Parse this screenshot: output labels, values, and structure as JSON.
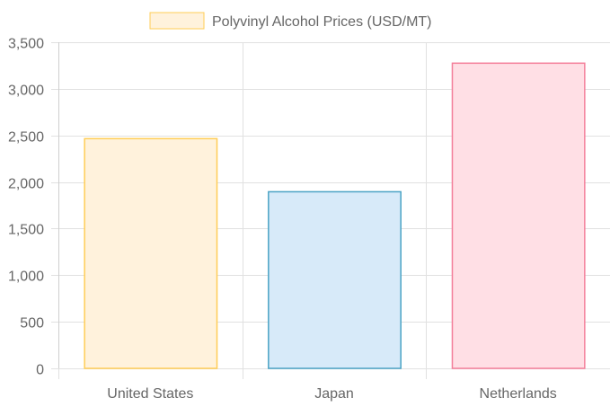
{
  "chart_data": {
    "type": "bar",
    "categories": [
      "United States",
      "Japan",
      "Netherlands"
    ],
    "series": [
      {
        "name": "Polyvinyl Alcohol Prices (USD/MT)",
        "values": [
          2470,
          1900,
          3280
        ]
      }
    ],
    "ylim": [
      0,
      3500
    ],
    "yticks": [
      0,
      500,
      1000,
      1500,
      2000,
      2500,
      3000,
      3500
    ],
    "ytick_labels": [
      "0",
      "500",
      "1,000",
      "1,500",
      "2,000",
      "2,500",
      "3,000",
      "3,500"
    ],
    "legend": "top-center",
    "grid": true,
    "bar_fill_colors": [
      "#fff2dc",
      "#d7eaf9",
      "#ffdfe5"
    ],
    "bar_border_colors": [
      "#ffcd56",
      "#4aa3c5",
      "#f47f9a"
    ],
    "legend_swatch_fill": "#fff2dc",
    "legend_swatch_border": "#ffcd56",
    "grid_color": "#e1e1e1",
    "text_color": "#666666"
  }
}
